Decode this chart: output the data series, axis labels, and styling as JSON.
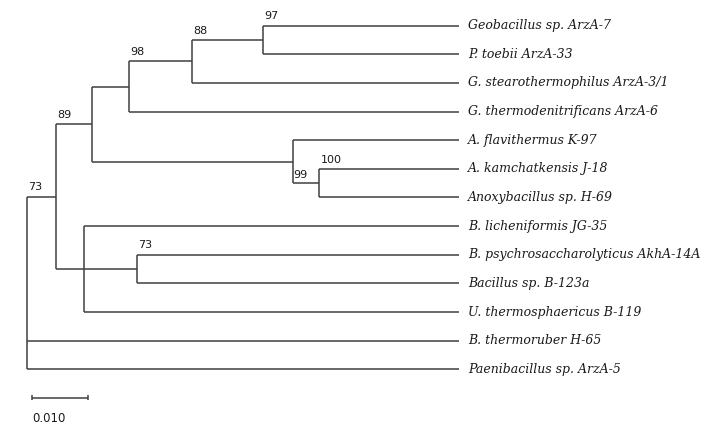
{
  "taxa": [
    "Geobacillus sp. ArzA-7",
    "P. toebii ArzA-33",
    "G. stearothermophilus ArzA-3/1",
    "G. thermodenitrificans ArzA-6",
    "A. flavithermus K-97",
    "A. kamchatkensis J-18",
    "Anoxybacillus sp. H-69",
    "B. licheniformis JG-35",
    "B. psychrosaccharolyticus AkhA-14A",
    "Bacillus sp. B-123a",
    "U. thermosphaericus B-119",
    "B. thermoruber H-65",
    "Paenibacillus sp. ArzA-5"
  ],
  "background_color": "#ffffff",
  "line_color": "#404040",
  "text_color": "#1a1a1a",
  "scale_bar_label": "0.010"
}
